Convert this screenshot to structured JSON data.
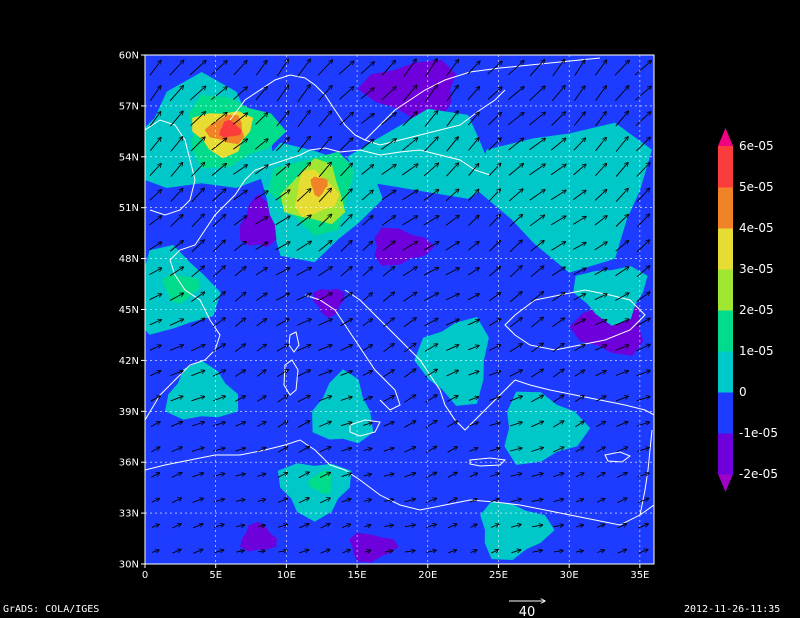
{
  "footer": {
    "left": "GrADS: COLA/IGES",
    "right": "2012-11-26-11:35",
    "vector_ref_label": "40"
  },
  "chart_data": {
    "type": "heatmap",
    "title": "",
    "projection": "lat-lon",
    "x_range": [
      0,
      36
    ],
    "y_range": [
      30,
      60
    ],
    "x_ticks": [
      "0",
      "5E",
      "10E",
      "15E",
      "20E",
      "25E",
      "30E",
      "35E"
    ],
    "x_tick_values": [
      0,
      5,
      10,
      15,
      20,
      25,
      30,
      35
    ],
    "y_ticks": [
      "30N",
      "33N",
      "36N",
      "39N",
      "42N",
      "45N",
      "48N",
      "51N",
      "54N",
      "57N",
      "60N"
    ],
    "y_tick_values": [
      30,
      33,
      36,
      39,
      42,
      45,
      48,
      51,
      54,
      57,
      60
    ],
    "grid": true,
    "colorbar": {
      "placement": "right",
      "labels": [
        "6e-05",
        "5e-05",
        "4e-05",
        "3e-05",
        "2e-05",
        "1e-05",
        "0",
        "-1e-05",
        "-2e-05"
      ],
      "levels": [
        {
          "min": -3e-05,
          "max": -2e-05,
          "color": "#a000c8"
        },
        {
          "min": -2e-05,
          "max": -1e-05,
          "color": "#6e00dc"
        },
        {
          "min": -1e-05,
          "max": 0,
          "color": "#1e3cff"
        },
        {
          "min": 0,
          "max": 1e-05,
          "color": "#00c8c8"
        },
        {
          "min": 1e-05,
          "max": 2e-05,
          "color": "#00dc8c"
        },
        {
          "min": 2e-05,
          "max": 3e-05,
          "color": "#a0e632"
        },
        {
          "min": 3e-05,
          "max": 4e-05,
          "color": "#e6dc32"
        },
        {
          "min": 4e-05,
          "max": 5e-05,
          "color": "#f08228"
        },
        {
          "min": 5e-05,
          "max": 6e-05,
          "color": "#fa3c3c"
        },
        {
          "min": 6e-05,
          "max": 7e-05,
          "color": "#f00082"
        }
      ]
    },
    "background_color": "#1e3cff",
    "contour_regions": [
      {
        "level": 0,
        "color": "#00c8c8",
        "center": [
          4,
          55
        ],
        "radius": [
          6,
          4
        ]
      },
      {
        "level": 1e-05,
        "color": "#00dc8c",
        "center": [
          6,
          55.5
        ],
        "radius": [
          4,
          2.5
        ]
      },
      {
        "level": 3e-05,
        "color": "#e6dc32",
        "center": [
          5.5,
          55.5
        ],
        "radius": [
          2.5,
          1.6
        ]
      },
      {
        "level": 4e-05,
        "color": "#f08228",
        "center": [
          5.8,
          55.6
        ],
        "radius": [
          1.6,
          1
        ]
      },
      {
        "level": 5e-05,
        "color": "#fa3c3c",
        "center": [
          6,
          55.6
        ],
        "radius": [
          0.9,
          0.6
        ]
      },
      {
        "level": 0,
        "color": "#00c8c8",
        "center": [
          12,
          51.5
        ],
        "radius": [
          5,
          4
        ]
      },
      {
        "level": 1e-05,
        "color": "#00dc8c",
        "center": [
          12,
          52
        ],
        "radius": [
          3.5,
          2.8
        ]
      },
      {
        "level": 2e-05,
        "color": "#a0e632",
        "center": [
          12,
          51.8
        ],
        "radius": [
          2.6,
          2.2
        ]
      },
      {
        "level": 3e-05,
        "color": "#e6dc32",
        "center": [
          12,
          51.8
        ],
        "radius": [
          1.8,
          1.6
        ]
      },
      {
        "level": 4e-05,
        "color": "#f08228",
        "center": [
          12.3,
          52.3
        ],
        "radius": [
          0.7,
          0.7
        ]
      },
      {
        "level": -1e-05,
        "color": "#6e00dc",
        "center": [
          19,
          58
        ],
        "radius": [
          4,
          2
        ]
      },
      {
        "level": -1e-05,
        "color": "#6e00dc",
        "center": [
          8,
          50
        ],
        "radius": [
          1.5,
          1.8
        ]
      },
      {
        "level": -1e-05,
        "color": "#6e00dc",
        "center": [
          18,
          48.7
        ],
        "radius": [
          2.5,
          1.3
        ]
      },
      {
        "level": -1e-05,
        "color": "#6e00dc",
        "center": [
          13,
          45.5
        ],
        "radius": [
          1.3,
          1
        ]
      },
      {
        "level": -1e-05,
        "color": "#6e00dc",
        "center": [
          33,
          44
        ],
        "radius": [
          3,
          2
        ]
      },
      {
        "level": -1e-05,
        "color": "#6e00dc",
        "center": [
          8,
          31.5
        ],
        "radius": [
          1.5,
          1
        ]
      },
      {
        "level": -1e-05,
        "color": "#6e00dc",
        "center": [
          16,
          31
        ],
        "radius": [
          2,
          1
        ]
      },
      {
        "level": 0,
        "color": "#00c8c8",
        "center": [
          30,
          52
        ],
        "radius": [
          7,
          5
        ]
      },
      {
        "level": 0,
        "color": "#00c8c8",
        "center": [
          20,
          54
        ],
        "radius": [
          6,
          3
        ]
      },
      {
        "level": 0,
        "color": "#00c8c8",
        "center": [
          2,
          46
        ],
        "radius": [
          3.5,
          3
        ]
      },
      {
        "level": 1e-05,
        "color": "#00dc8c",
        "center": [
          2.5,
          46.3
        ],
        "radius": [
          1.5,
          1
        ]
      },
      {
        "level": 0,
        "color": "#00c8c8",
        "center": [
          22,
          42
        ],
        "radius": [
          3,
          3
        ]
      },
      {
        "level": 0,
        "color": "#00c8c8",
        "center": [
          14,
          39
        ],
        "radius": [
          2.5,
          2.5
        ]
      },
      {
        "level": 0,
        "color": "#00c8c8",
        "center": [
          28,
          38
        ],
        "radius": [
          3.5,
          2.5
        ]
      },
      {
        "level": 0,
        "color": "#00c8c8",
        "center": [
          12,
          34.5
        ],
        "radius": [
          3,
          2
        ]
      },
      {
        "level": 1e-05,
        "color": "#00dc8c",
        "center": [
          12.5,
          34.8
        ],
        "radius": [
          1,
          0.8
        ]
      },
      {
        "level": 0,
        "color": "#00c8c8",
        "center": [
          4,
          40
        ],
        "radius": [
          3,
          2
        ]
      },
      {
        "level": 0,
        "color": "#00c8c8",
        "center": [
          26,
          32
        ],
        "radius": [
          3,
          2
        ]
      },
      {
        "level": 0,
        "color": "#00c8c8",
        "center": [
          33,
          46
        ],
        "radius": [
          3,
          2
        ]
      }
    ],
    "wind_vectors": {
      "reference_magnitude": 40,
      "grid_spacing_deg": 1.5,
      "prevailing": "south-westerly across the north, turning westerly to the south"
    }
  }
}
